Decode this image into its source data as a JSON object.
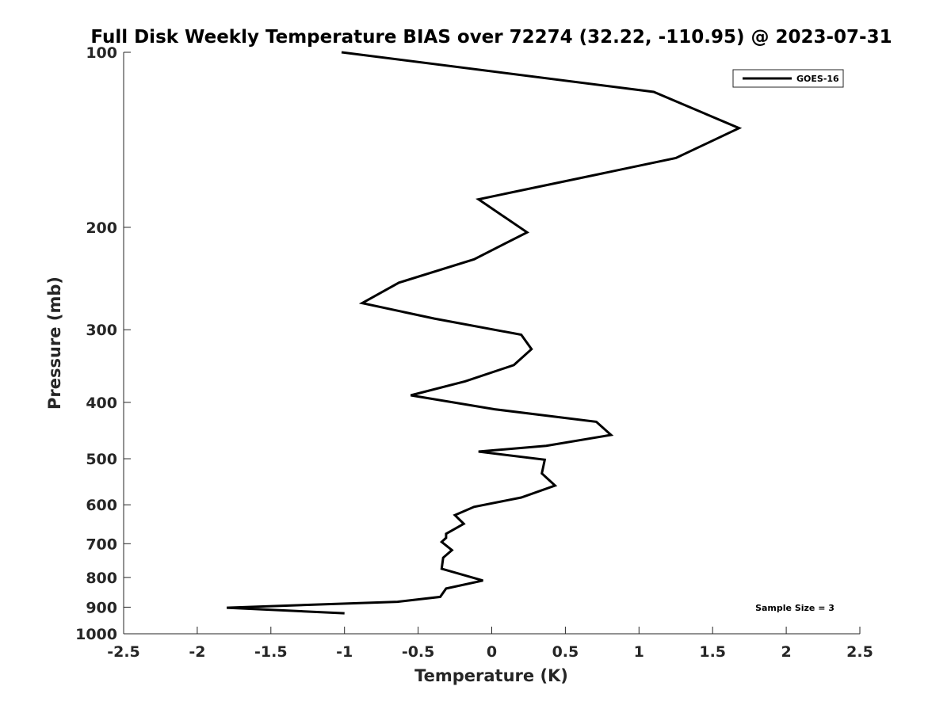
{
  "chart_data": {
    "type": "line",
    "title": "Full Disk Weekly Temperature BIAS over 72274 (32.22, -110.95) @ 2023-07-31",
    "xlabel": "Temperature (K)",
    "ylabel": "Pressure (mb)",
    "xlim": [
      -2.5,
      2.5
    ],
    "ylim": [
      100,
      1000
    ],
    "y_scale": "log",
    "y_reversed": true,
    "x_ticks": [
      "-2.5",
      "-2",
      "-1.5",
      "-1",
      "-0.5",
      "0",
      "0.5",
      "1",
      "1.5",
      "2",
      "2.5"
    ],
    "x_tick_values": [
      -2.5,
      -2,
      -1.5,
      -1,
      -0.5,
      0,
      0.5,
      1,
      1.5,
      2,
      2.5
    ],
    "y_ticks": [
      "100",
      "200",
      "300",
      "400",
      "500",
      "600",
      "700",
      "800",
      "900",
      "1000"
    ],
    "y_tick_values": [
      100,
      200,
      300,
      400,
      500,
      600,
      700,
      800,
      900,
      1000
    ],
    "grid": false,
    "legend": {
      "position": "top-right",
      "entries": [
        "GOES-16"
      ]
    },
    "annotation": "Sample Size = 3",
    "series": [
      {
        "name": "GOES-16",
        "color": "#000000",
        "x": [
          -1.02,
          1.1,
          1.68,
          1.25,
          -0.09,
          0.24,
          -0.12,
          -0.63,
          -0.88,
          -0.39,
          0.2,
          0.27,
          0.15,
          -0.18,
          -0.55,
          0.02,
          0.71,
          0.81,
          0.37,
          -0.09,
          0.36,
          0.34,
          0.43,
          0.2,
          -0.12,
          -0.25,
          -0.19,
          -0.31,
          -0.31,
          -0.34,
          -0.27,
          -0.33,
          -0.34,
          -0.06,
          -0.31,
          -0.35,
          -0.64,
          -1.8,
          -1.0
        ],
        "y": [
          100,
          117,
          135,
          152,
          179,
          204,
          227,
          249,
          270,
          287,
          306,
          324,
          345,
          368,
          389,
          411,
          432,
          455,
          475,
          486,
          502,
          530,
          556,
          583,
          605,
          625,
          647,
          673,
          684,
          695,
          718,
          740,
          773,
          810,
          836,
          864,
          881,
          902,
          922
        ]
      }
    ]
  }
}
